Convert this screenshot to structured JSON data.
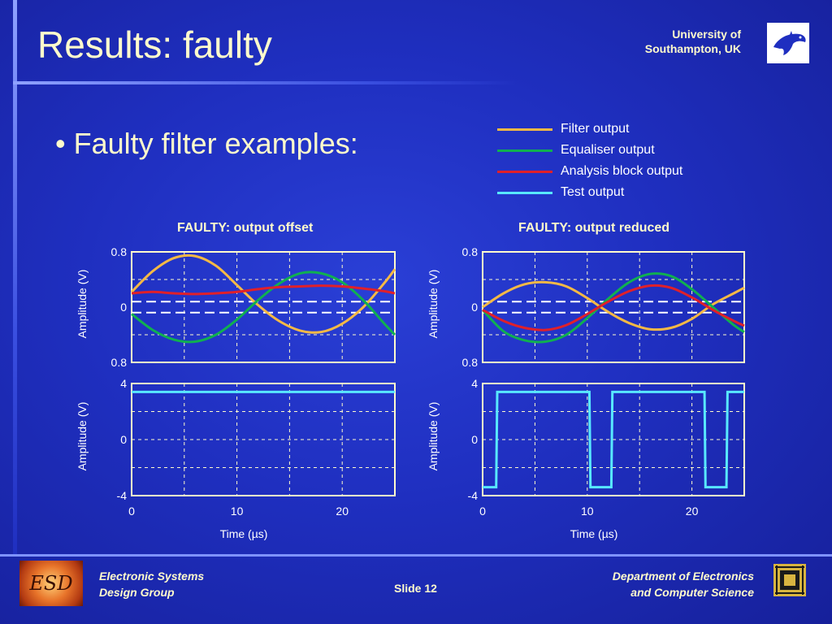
{
  "slide": {
    "title": "Results: faulty",
    "university": [
      "University of",
      "Southampton, UK"
    ],
    "bullet": "•  Faulty filter examples:",
    "footer_left": [
      "Electronic Systems",
      "Design Group"
    ],
    "footer_mid": "Slide 12",
    "footer_right": [
      "Department of Electronics",
      "and  Computer Science"
    ],
    "esd_logo_text": "ESD"
  },
  "legend": [
    {
      "label": "Filter output",
      "color": "#f5b945"
    },
    {
      "label": "Equaliser output",
      "color": "#10b050"
    },
    {
      "label": "Analysis block output",
      "color": "#e0202a"
    },
    {
      "label": "Test output",
      "color": "#58e8ff"
    }
  ],
  "chart_data": [
    {
      "type": "line",
      "title": "FAULTY: output offset",
      "ylabel": "Amplitude (V)",
      "yticklabels": [
        "0.8",
        "0",
        "0.8"
      ],
      "ylim": [
        -0.8,
        0.8
      ],
      "xlim": [
        0,
        25
      ],
      "grid": true,
      "series": [
        {
          "name": "Filter output",
          "x": [
            0,
            2,
            4,
            6,
            8,
            10,
            12,
            14,
            16,
            18,
            20,
            22,
            24,
            25
          ],
          "values": [
            0.22,
            0.52,
            0.71,
            0.74,
            0.6,
            0.32,
            0.03,
            -0.2,
            -0.34,
            -0.36,
            -0.24,
            0.0,
            0.35,
            0.55
          ]
        },
        {
          "name": "Equaliser output",
          "x": [
            0,
            2,
            4,
            6,
            8,
            10,
            12,
            14,
            16,
            18,
            20,
            22,
            24,
            25
          ],
          "values": [
            -0.1,
            -0.33,
            -0.47,
            -0.5,
            -0.4,
            -0.18,
            0.1,
            0.34,
            0.49,
            0.49,
            0.36,
            0.1,
            -0.24,
            -0.4
          ]
        },
        {
          "name": "Analysis block output",
          "x": [
            0,
            2,
            4,
            6,
            8,
            10,
            12,
            14,
            16,
            18,
            20,
            22,
            24,
            25
          ],
          "values": [
            0.2,
            0.22,
            0.2,
            0.19,
            0.2,
            0.22,
            0.26,
            0.29,
            0.3,
            0.31,
            0.3,
            0.27,
            0.23,
            0.2
          ]
        }
      ],
      "bands": [
        0.08,
        -0.08
      ]
    },
    {
      "type": "line",
      "title": "",
      "xlabel": "Time (µs)",
      "ylabel": "Amplitude (V)",
      "yticklabels": [
        "4",
        "0",
        "-4"
      ],
      "xticklabels": [
        "0",
        "10",
        "20"
      ],
      "ylim": [
        -4,
        4
      ],
      "xlim": [
        0,
        25
      ],
      "grid": true,
      "series": [
        {
          "name": "Test output",
          "x": [
            0,
            25
          ],
          "values": [
            3.4,
            3.4
          ]
        }
      ]
    },
    {
      "type": "line",
      "title": "FAULTY: output reduced",
      "ylabel": "Amplitude (V)",
      "yticklabels": [
        "0.8",
        "0",
        "0.8"
      ],
      "ylim": [
        -0.8,
        0.8
      ],
      "xlim": [
        0,
        25
      ],
      "grid": true,
      "series": [
        {
          "name": "Filter output",
          "x": [
            0,
            2,
            4,
            6,
            8,
            10,
            12,
            14,
            16,
            18,
            20,
            22,
            24,
            25
          ],
          "values": [
            0.0,
            0.2,
            0.33,
            0.36,
            0.3,
            0.13,
            -0.07,
            -0.23,
            -0.32,
            -0.3,
            -0.17,
            0.04,
            0.2,
            0.28
          ]
        },
        {
          "name": "Equaliser output",
          "x": [
            0,
            2,
            4,
            6,
            8,
            10,
            12,
            14,
            16,
            18,
            20,
            22,
            24,
            25
          ],
          "values": [
            -0.04,
            -0.35,
            -0.48,
            -0.5,
            -0.4,
            -0.16,
            0.12,
            0.36,
            0.48,
            0.45,
            0.26,
            0.0,
            -0.26,
            -0.36
          ]
        },
        {
          "name": "Analysis block output",
          "x": [
            0,
            2,
            4,
            6,
            8,
            10,
            12,
            14,
            16,
            18,
            20,
            22,
            24,
            25
          ],
          "values": [
            -0.04,
            -0.2,
            -0.3,
            -0.33,
            -0.26,
            -0.1,
            0.08,
            0.23,
            0.31,
            0.28,
            0.14,
            -0.04,
            -0.2,
            -0.27
          ]
        }
      ],
      "bands": [
        0.08,
        -0.08
      ]
    },
    {
      "type": "line",
      "title": "",
      "xlabel": "Time (µs)",
      "ylabel": "Amplitude (V)",
      "yticklabels": [
        "4",
        "0",
        "-4"
      ],
      "xticklabels": [
        "0",
        "10",
        "20"
      ],
      "ylim": [
        -4,
        4
      ],
      "xlim": [
        0,
        25
      ],
      "grid": true,
      "series": [
        {
          "name": "Test output",
          "x": [
            0,
            1.3,
            1.4,
            10.2,
            10.3,
            12.3,
            12.4,
            21.2,
            21.3,
            23.3,
            23.4,
            25
          ],
          "values": [
            -3.4,
            -3.4,
            3.4,
            3.4,
            -3.4,
            -3.4,
            3.4,
            3.4,
            -3.4,
            -3.4,
            3.4,
            3.4
          ]
        }
      ]
    }
  ]
}
